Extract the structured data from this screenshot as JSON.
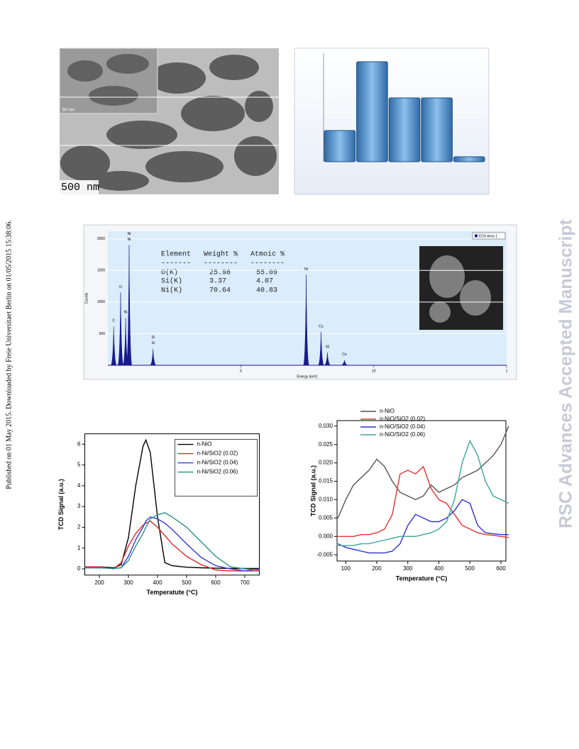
{
  "sidebar": {
    "published": "Published on 01 May 2015. Downloaded by Freie Universitaet Berlin on 01/05/2015 15:38:06.",
    "watermark": "RSC Advances Accepted Manuscript"
  },
  "tem_image": {
    "scale_bar": "500 nm",
    "inset_scale_bar": "50 nm"
  },
  "edx_table": {
    "rows": [
      [
        "Element",
        "Weight %",
        "Atmoic %"
      ],
      [
        "-------",
        "--------",
        "--------"
      ],
      [
        "O(K)",
        "25.98",
        "55.09"
      ],
      [
        "Si(K)",
        "3.37",
        "4.07"
      ],
      [
        "Ni(K)",
        "70.64",
        "40.83"
      ]
    ]
  },
  "chart_data": [
    {
      "type": "bar",
      "values": [
        44,
        141,
        90,
        90,
        7
      ],
      "color": "#5b9bd5",
      "ylim": [
        0,
        153
      ],
      "gridlines": [
        70,
        111,
        152
      ]
    },
    {
      "type": "spectrum",
      "xlabel": "Energy (keV)",
      "ylabel": "Counts",
      "legend": "EDX Area 1",
      "color": "#1a1a8c",
      "xlim": [
        0,
        15
      ],
      "ylim": [
        0,
        2120
      ],
      "xticks": [
        5,
        10,
        {
          "value": 15,
          "label": "1"
        }
      ],
      "yticks": [
        500,
        1000,
        1500,
        2000
      ],
      "x": [
        0.22,
        0.48,
        0.67,
        0.8,
        1.7,
        7.46,
        8.02,
        8.26,
        8.9
      ],
      "values": [
        615,
        1150,
        750,
        1900,
        260,
        1430,
        525,
        200,
        80
      ],
      "peak_labels": [
        [
          "C"
        ],
        [
          "O"
        ],
        [
          "Ni"
        ],
        [
          "Ni",
          "Ni"
        ],
        [
          "Si",
          "Si"
        ],
        [
          "Ni"
        ],
        [
          "Cu"
        ],
        [
          "Ni"
        ],
        [
          "Cu"
        ]
      ]
    },
    {
      "type": "line",
      "xlabel": "Temperatute (°C)",
      "ylabel": "TCD Signal (a.u.)",
      "legend": "box",
      "xlim": [
        150,
        750
      ],
      "ylim": [
        -0.3,
        6.5
      ],
      "xticks": [
        200,
        300,
        400,
        500,
        600,
        700
      ],
      "yticks": [
        0,
        1,
        2,
        3,
        4,
        5,
        6
      ],
      "x": [
        150,
        200,
        250,
        275,
        300,
        325,
        350,
        360,
        375,
        400,
        425,
        450,
        500,
        550,
        600,
        650,
        700,
        750
      ],
      "series": [
        {
          "name": "n-NiO",
          "color": "#000000",
          "values": [
            0.05,
            0.1,
            0.05,
            0.2,
            1.5,
            4,
            5.9,
            6.2,
            5.6,
            2.5,
            0.3,
            0.15,
            0.08,
            0.05,
            0.03,
            0.02,
            0.02,
            0.02
          ]
        },
        {
          "name": "n-Ni/SiO2 (0.02)",
          "color": "#e8262a",
          "values": [
            0.1,
            0.1,
            0,
            0.3,
            1.1,
            1.7,
            2.1,
            2.2,
            2.3,
            2.0,
            1.6,
            1.2,
            0.6,
            0.2,
            -0.05,
            -0.1,
            -0.1,
            -0.1
          ]
        },
        {
          "name": "n-Ni/SiO2 (0.04)",
          "color": "#3a3ad6",
          "values": [
            0.05,
            0.05,
            0.02,
            0.05,
            0.6,
            1.4,
            2.0,
            2.3,
            2.5,
            2.4,
            2.2,
            1.9,
            1.2,
            0.55,
            0.15,
            0,
            -0.1,
            0
          ]
        },
        {
          "name": "n-Ni/SiO2 (0.06)",
          "color": "#2a8f86",
          "values": [
            0.05,
            0.05,
            0.02,
            0.05,
            0.4,
            1.1,
            1.7,
            2.0,
            2.4,
            2.6,
            2.7,
            2.5,
            2.0,
            1.3,
            0.6,
            0.1,
            0,
            -0.05
          ]
        }
      ]
    },
    {
      "type": "line",
      "xlabel": "Temperature (°C)",
      "ylabel": "TCD Signal (a.u.)",
      "legend": "above",
      "xlim": [
        72,
        616
      ],
      "ylim": [
        -0.0067,
        0.0315
      ],
      "xticks": [
        100,
        200,
        300,
        400,
        500,
        600
      ],
      "yticks": [
        {
          "value": -0.005,
          "label": "-0.005"
        },
        {
          "value": 0,
          "label": "0.000"
        },
        0.005,
        {
          "value": 0.01,
          "label": "0.010"
        },
        0.015,
        {
          "value": 0.02,
          "label": "0.020"
        },
        0.025,
        {
          "value": 0.03,
          "label": "0.030"
        }
      ],
      "x": [
        75,
        100,
        125,
        150,
        175,
        200,
        225,
        250,
        275,
        300,
        325,
        350,
        375,
        400,
        425,
        450,
        475,
        500,
        525,
        550,
        575,
        600,
        625
      ],
      "series": [
        {
          "name": "n-NiO",
          "color": "#555555",
          "values": [
            0.005,
            0.01,
            0.014,
            0.016,
            0.018,
            0.021,
            0.019,
            0.015,
            0.012,
            0.011,
            0.01,
            0.011,
            0.014,
            0.012,
            0.013,
            0.014,
            0.016,
            0.017,
            0.018,
            0.02,
            0.022,
            0.025,
            0.03
          ]
        },
        {
          "name": "n-NiO/SiO2 (0.02)",
          "color": "#e83030",
          "values": [
            0,
            0,
            0,
            0.0005,
            0.0005,
            0.001,
            0.002,
            0.006,
            0.017,
            0.018,
            0.017,
            0.019,
            0.013,
            0.01,
            0.009,
            0.006,
            0.003,
            0.002,
            0.001,
            0.0005,
            0.0003,
            0,
            -0.0003
          ]
        },
        {
          "name": "n-NiO/SiO2 (0.04)",
          "color": "#3030cc",
          "values": [
            -0.002,
            -0.003,
            -0.0035,
            -0.004,
            -0.0045,
            -0.0045,
            -0.0045,
            -0.004,
            -0.002,
            0.003,
            0.006,
            0.005,
            0.004,
            0.004,
            0.005,
            0.007,
            0.01,
            0.009,
            0.003,
            0.001,
            0.0007,
            0.0005,
            0.0005
          ]
        },
        {
          "name": "n-NiO/SiO2 (0.06)",
          "color": "#3aa897",
          "values": [
            -0.0025,
            -0.0025,
            -0.0025,
            -0.002,
            -0.002,
            -0.0015,
            -0.001,
            -0.0005,
            0,
            0,
            0,
            0.0005,
            0.001,
            0.002,
            0.004,
            0.01,
            0.02,
            0.026,
            0.022,
            0.015,
            0.011,
            0.01,
            0.009
          ]
        }
      ]
    }
  ]
}
